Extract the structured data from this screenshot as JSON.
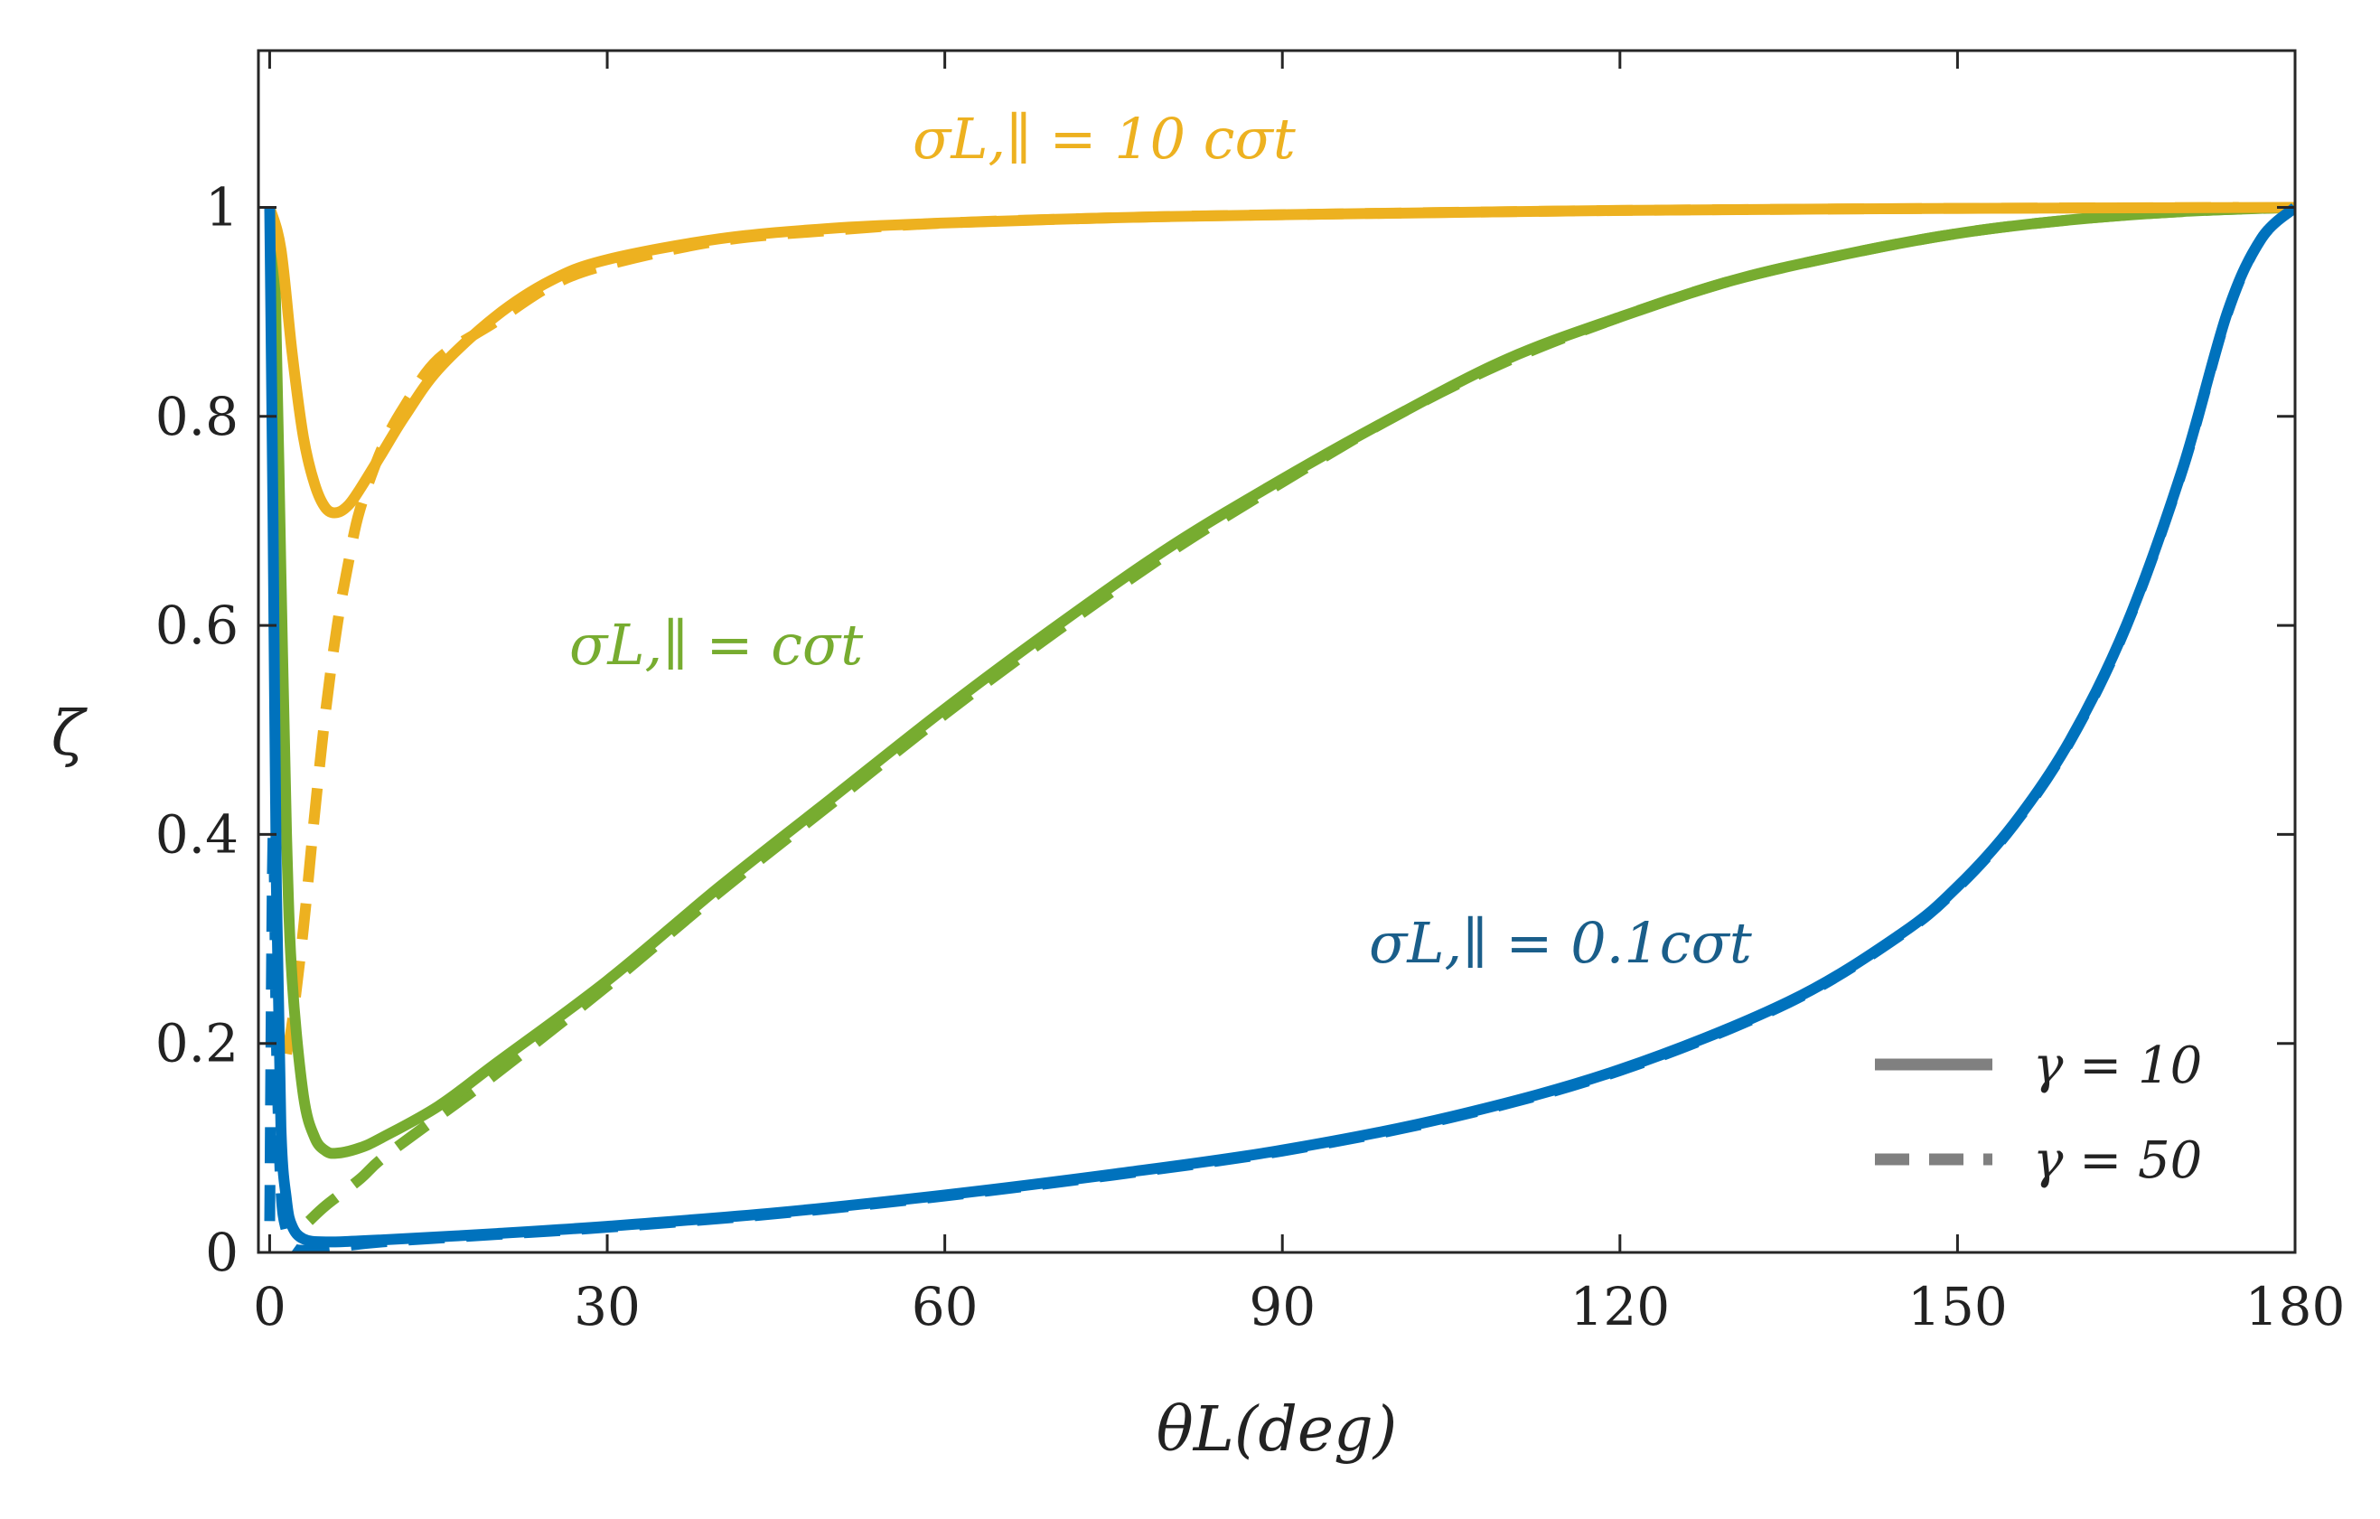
{
  "chart_data": {
    "type": "line",
    "title": "",
    "xlabel": "θL(deg)",
    "ylabel": "ζ",
    "xlim": [
      -1,
      180
    ],
    "ylim": [
      0,
      1.15
    ],
    "xticks": [
      0,
      30,
      60,
      90,
      120,
      150,
      180
    ],
    "xtick_labels": [
      "0",
      "30",
      "60",
      "90",
      "120",
      "150",
      "180"
    ],
    "yticks": [
      0,
      0.2,
      0.4,
      0.6,
      0.8,
      1
    ],
    "ytick_labels": [
      "0",
      "0.2",
      "0.4",
      "0.6",
      "0.8",
      "1"
    ],
    "grid": false,
    "legend_position": "bottom-right",
    "legend": [
      {
        "label": "γ = 10",
        "style": "solid",
        "color": "#808080"
      },
      {
        "label": "γ = 50",
        "style": "dashed",
        "color": "#808080"
      }
    ],
    "annotations": [
      {
        "text": "σL,∥ = 10 cσt",
        "color": "#EDB120"
      },
      {
        "text": "σL,∥ =  cσt",
        "color": "#77AC30"
      },
      {
        "text": "σL,∥ = 0.1cσt",
        "color": "#1A5E8A"
      }
    ],
    "series": [
      {
        "name": "σL,∥ = 10 cσt, γ = 10",
        "color": "#EDB120",
        "style": "solid",
        "x": [
          0,
          1,
          2,
          3,
          4,
          5,
          6,
          7,
          8,
          10,
          12,
          15,
          20,
          25,
          30,
          40,
          50,
          60,
          75,
          90,
          120,
          150,
          180
        ],
        "y": [
          1.0,
          0.96,
          0.86,
          0.78,
          0.735,
          0.712,
          0.708,
          0.715,
          0.73,
          0.765,
          0.8,
          0.845,
          0.895,
          0.93,
          0.95,
          0.97,
          0.98,
          0.985,
          0.99,
          0.993,
          0.997,
          0.999,
          1.0
        ]
      },
      {
        "name": "σL,∥ = 10 cσt, γ = 50",
        "color": "#EDB120",
        "style": "dashed",
        "x": [
          1.5,
          2,
          3,
          4,
          5,
          6,
          7,
          8,
          10,
          12,
          15,
          20,
          25,
          30,
          40,
          50,
          60,
          75,
          90,
          120,
          150,
          175
        ],
        "y": [
          0.19,
          0.22,
          0.31,
          0.42,
          0.52,
          0.6,
          0.66,
          0.71,
          0.77,
          0.81,
          0.855,
          0.89,
          0.925,
          0.945,
          0.968,
          0.978,
          0.985,
          0.99,
          0.993,
          0.997,
          0.999,
          1.0
        ]
      },
      {
        "name": "σL,∥ =  cσt, γ = 10",
        "color": "#77AC30",
        "style": "solid",
        "x": [
          0,
          0.5,
          1,
          1.5,
          2,
          3,
          4,
          5,
          6,
          8,
          10,
          15,
          20,
          30,
          40,
          50,
          60,
          70,
          80,
          90,
          100,
          110,
          120,
          130,
          140,
          150,
          160,
          170,
          180
        ],
        "y": [
          1.0,
          0.92,
          0.65,
          0.4,
          0.26,
          0.15,
          0.11,
          0.097,
          0.095,
          0.1,
          0.11,
          0.14,
          0.18,
          0.26,
          0.35,
          0.435,
          0.52,
          0.6,
          0.675,
          0.74,
          0.8,
          0.855,
          0.895,
          0.93,
          0.955,
          0.975,
          0.988,
          0.996,
          1.0
        ]
      },
      {
        "name": "σL,∥ =  cσt, γ = 50",
        "color": "#77AC30",
        "style": "dashed",
        "x": [
          3.5,
          5,
          8,
          10,
          15,
          20,
          30,
          40,
          50,
          60,
          70,
          80,
          90,
          100,
          110,
          120,
          130,
          140,
          150,
          160,
          170,
          180
        ],
        "y": [
          0.03,
          0.045,
          0.07,
          0.09,
          0.13,
          0.17,
          0.255,
          0.345,
          0.43,
          0.515,
          0.595,
          0.67,
          0.737,
          0.8,
          0.853,
          0.895,
          0.93,
          0.955,
          0.975,
          0.988,
          0.996,
          1.0
        ]
      },
      {
        "name": "σL,∥ = 0.1cσt, γ = 10",
        "color": "#0072BD",
        "style": "solid",
        "x": [
          0,
          0.3,
          0.6,
          1,
          1.5,
          2,
          3,
          5,
          10,
          20,
          30,
          45,
          60,
          75,
          90,
          105,
          120,
          135,
          145,
          150,
          155,
          160,
          165,
          170,
          174,
          177,
          180
        ],
        "y": [
          1.0,
          0.7,
          0.35,
          0.12,
          0.05,
          0.025,
          0.013,
          0.01,
          0.012,
          0.018,
          0.025,
          0.038,
          0.055,
          0.075,
          0.098,
          0.13,
          0.175,
          0.24,
          0.305,
          0.35,
          0.41,
          0.49,
          0.6,
          0.75,
          0.9,
          0.97,
          1.0
        ]
      },
      {
        "name": "σL,∥ = 0.1cσt, γ = 50",
        "color": "#0072BD",
        "style": "dashed",
        "x": [
          0,
          0.3,
          0.6,
          1,
          1.5,
          2,
          3,
          5,
          10,
          20,
          30,
          45,
          60,
          75,
          90,
          105,
          120,
          135,
          145,
          150,
          155,
          160,
          165,
          170,
          174,
          177,
          180
        ],
        "y": [
          0.03,
          0.4,
          0.2,
          0.06,
          0.02,
          0.005,
          0.002,
          0.004,
          0.01,
          0.017,
          0.024,
          0.037,
          0.054,
          0.074,
          0.097,
          0.129,
          0.174,
          0.239,
          0.304,
          0.349,
          0.409,
          0.489,
          0.599,
          0.749,
          0.899,
          0.97,
          1.0
        ]
      }
    ]
  }
}
